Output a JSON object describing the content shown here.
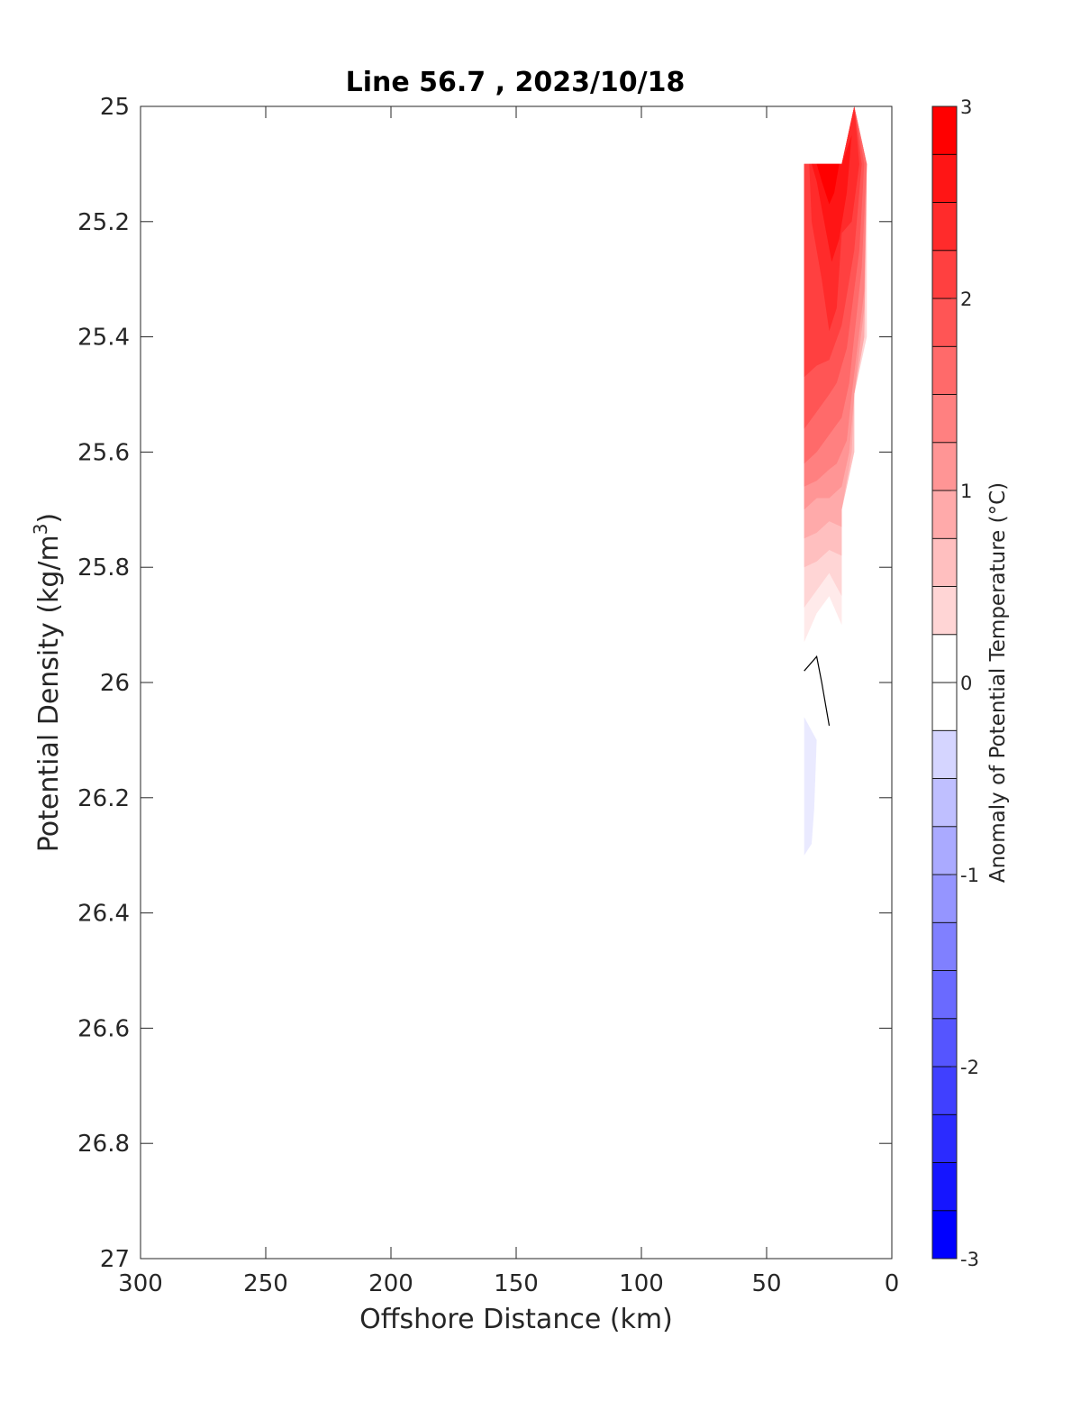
{
  "chart_data": {
    "type": "contour",
    "title": "Line 56.7 , 2023/10/18",
    "xlabel": "Offshore Distance (km)",
    "ylabel_main": "Potential Density (kg/m",
    "ylabel_sup": "3",
    "ylabel_close": ")",
    "colorbar_label": "Anomaly of Potential Temperature (°C)",
    "xlim": [
      300,
      0
    ],
    "ylim": [
      25,
      27
    ],
    "x_reversed": true,
    "y_reversed": true,
    "x_ticks": [
      {
        "value": 300,
        "label": "300"
      },
      {
        "value": 250,
        "label": "250"
      },
      {
        "value": 200,
        "label": "200"
      },
      {
        "value": 150,
        "label": "150"
      },
      {
        "value": 100,
        "label": "100"
      },
      {
        "value": 50,
        "label": "50"
      },
      {
        "value": 0,
        "label": "0"
      }
    ],
    "y_ticks": [
      {
        "value": 25,
        "label": "25"
      },
      {
        "value": 25.2,
        "label": "25.2"
      },
      {
        "value": 25.4,
        "label": "25.4"
      },
      {
        "value": 25.6,
        "label": "25.6"
      },
      {
        "value": 25.8,
        "label": "25.8"
      },
      {
        "value": 26,
        "label": "26"
      },
      {
        "value": 26.2,
        "label": "26.2"
      },
      {
        "value": 26.4,
        "label": "26.4"
      },
      {
        "value": 26.6,
        "label": "26.6"
      },
      {
        "value": 26.8,
        "label": "26.8"
      },
      {
        "value": 27,
        "label": "27"
      }
    ],
    "colorbar": {
      "range": [
        -3,
        3
      ],
      "levels": [
        -3,
        -2.75,
        -2.5,
        -2.25,
        -2,
        -1.75,
        -1.5,
        -1.25,
        -1,
        -0.75,
        -0.5,
        -0.25,
        0,
        0.25,
        0.5,
        0.75,
        1,
        1.25,
        1.5,
        1.75,
        2,
        2.25,
        2.5,
        2.75,
        3
      ],
      "ticks": [
        {
          "value": 3,
          "label": "3"
        },
        {
          "value": 2,
          "label": "2"
        },
        {
          "value": 1,
          "label": "1"
        },
        {
          "value": 0,
          "label": "0"
        },
        {
          "value": -1,
          "label": "-1"
        },
        {
          "value": -2,
          "label": "-2"
        },
        {
          "value": -3,
          "label": "-3"
        }
      ],
      "colormap": "blue-white-red",
      "color_negative_end": "#0000ff",
      "color_zero": "#ffffff",
      "color_positive_end": "#ff0000"
    },
    "contour_fills": [
      {
        "level": 0.25,
        "points": [
          [
            35,
            25.1
          ],
          [
            20,
            25.1
          ],
          [
            15,
            25.0
          ],
          [
            10,
            25.1
          ],
          [
            10,
            25.4
          ],
          [
            15,
            25.5
          ],
          [
            15,
            25.6
          ],
          [
            20,
            25.7
          ],
          [
            20,
            25.9
          ],
          [
            25,
            25.85
          ],
          [
            30,
            25.88
          ],
          [
            35,
            25.93
          ]
        ]
      },
      {
        "level": 0.5,
        "points": [
          [
            35,
            25.1
          ],
          [
            20,
            25.1
          ],
          [
            15,
            25.0
          ],
          [
            10,
            25.1
          ],
          [
            10,
            25.4
          ],
          [
            15,
            25.5
          ],
          [
            15,
            25.6
          ],
          [
            20,
            25.7
          ],
          [
            20,
            25.85
          ],
          [
            25,
            25.81
          ],
          [
            30,
            25.84
          ],
          [
            35,
            25.87
          ]
        ]
      },
      {
        "level": 0.75,
        "points": [
          [
            35,
            25.1
          ],
          [
            20,
            25.1
          ],
          [
            15,
            25.0
          ],
          [
            10,
            25.1
          ],
          [
            11,
            25.4
          ],
          [
            15,
            25.5
          ],
          [
            15,
            25.6
          ],
          [
            20,
            25.7
          ],
          [
            20,
            25.78
          ],
          [
            25,
            25.77
          ],
          [
            30,
            25.79
          ],
          [
            35,
            25.8
          ]
        ]
      },
      {
        "level": 1.0,
        "points": [
          [
            35,
            25.1
          ],
          [
            20,
            25.1
          ],
          [
            15,
            25.0
          ],
          [
            10,
            25.1
          ],
          [
            11,
            25.4
          ],
          [
            15,
            25.5
          ],
          [
            16,
            25.6
          ],
          [
            20,
            25.7
          ],
          [
            20,
            25.73
          ],
          [
            25,
            25.72
          ],
          [
            30,
            25.74
          ],
          [
            35,
            25.75
          ]
        ]
      },
      {
        "level": 1.25,
        "points": [
          [
            35,
            25.1
          ],
          [
            20,
            25.1
          ],
          [
            15,
            25.0
          ],
          [
            10,
            25.1
          ],
          [
            11,
            25.35
          ],
          [
            15,
            25.5
          ],
          [
            17,
            25.6
          ],
          [
            20,
            25.66
          ],
          [
            25,
            25.68
          ],
          [
            30,
            25.68
          ],
          [
            35,
            25.7
          ]
        ]
      },
      {
        "level": 1.5,
        "points": [
          [
            35,
            25.1
          ],
          [
            20,
            25.1
          ],
          [
            15,
            25.0
          ],
          [
            10,
            25.1
          ],
          [
            11,
            25.32
          ],
          [
            16,
            25.5
          ],
          [
            18,
            25.58
          ],
          [
            22,
            25.62
          ],
          [
            25,
            25.63
          ],
          [
            30,
            25.65
          ],
          [
            35,
            25.66
          ]
        ]
      },
      {
        "level": 1.75,
        "points": [
          [
            35,
            25.1
          ],
          [
            20,
            25.1
          ],
          [
            15,
            25.0
          ],
          [
            10,
            25.1
          ],
          [
            12,
            25.28
          ],
          [
            17,
            25.48
          ],
          [
            20,
            25.54
          ],
          [
            25,
            25.57
          ],
          [
            30,
            25.6
          ],
          [
            35,
            25.62
          ]
        ]
      },
      {
        "level": 2.0,
        "points": [
          [
            35,
            25.1
          ],
          [
            20,
            25.1
          ],
          [
            15,
            25.0
          ],
          [
            11,
            25.1
          ],
          [
            13,
            25.25
          ],
          [
            18,
            25.42
          ],
          [
            22,
            25.48
          ],
          [
            25,
            25.5
          ],
          [
            30,
            25.53
          ],
          [
            35,
            25.56
          ]
        ]
      },
      {
        "level": 2.25,
        "points": [
          [
            35,
            25.1
          ],
          [
            20,
            25.1
          ],
          [
            15,
            25.0
          ],
          [
            12,
            25.1
          ],
          [
            15,
            25.25
          ],
          [
            20,
            25.38
          ],
          [
            25,
            25.44
          ],
          [
            30,
            25.45
          ],
          [
            35,
            25.47
          ]
        ]
      },
      {
        "level": 2.5,
        "points": [
          [
            33,
            25.1
          ],
          [
            20,
            25.1
          ],
          [
            15,
            25.0
          ],
          [
            13,
            25.1
          ],
          [
            16,
            25.2
          ],
          [
            20,
            25.22
          ],
          [
            22,
            25.35
          ],
          [
            25,
            25.39
          ],
          [
            28,
            25.3
          ],
          [
            32,
            25.2
          ]
        ]
      },
      {
        "level": 2.75,
        "points": [
          [
            32,
            25.1
          ],
          [
            20,
            25.1
          ],
          [
            16,
            25.05
          ],
          [
            18,
            25.15
          ],
          [
            21,
            25.23
          ],
          [
            24,
            25.27
          ],
          [
            27,
            25.2
          ],
          [
            30,
            25.13
          ]
        ]
      },
      {
        "level": 3.0,
        "points": [
          [
            30,
            25.1
          ],
          [
            21,
            25.1
          ],
          [
            23,
            25.15
          ],
          [
            25,
            25.17
          ],
          [
            28,
            25.13
          ]
        ]
      },
      {
        "level": -0.25,
        "points": [
          [
            35,
            26.06
          ],
          [
            30,
            26.1
          ],
          [
            31,
            26.22
          ],
          [
            32,
            26.28
          ],
          [
            35,
            26.3
          ]
        ]
      }
    ],
    "contour_lines": [
      {
        "level": 0,
        "points": [
          [
            35,
            25.98
          ],
          [
            30,
            25.955
          ],
          [
            28,
            26.0
          ],
          [
            25,
            26.075
          ]
        ]
      }
    ]
  }
}
